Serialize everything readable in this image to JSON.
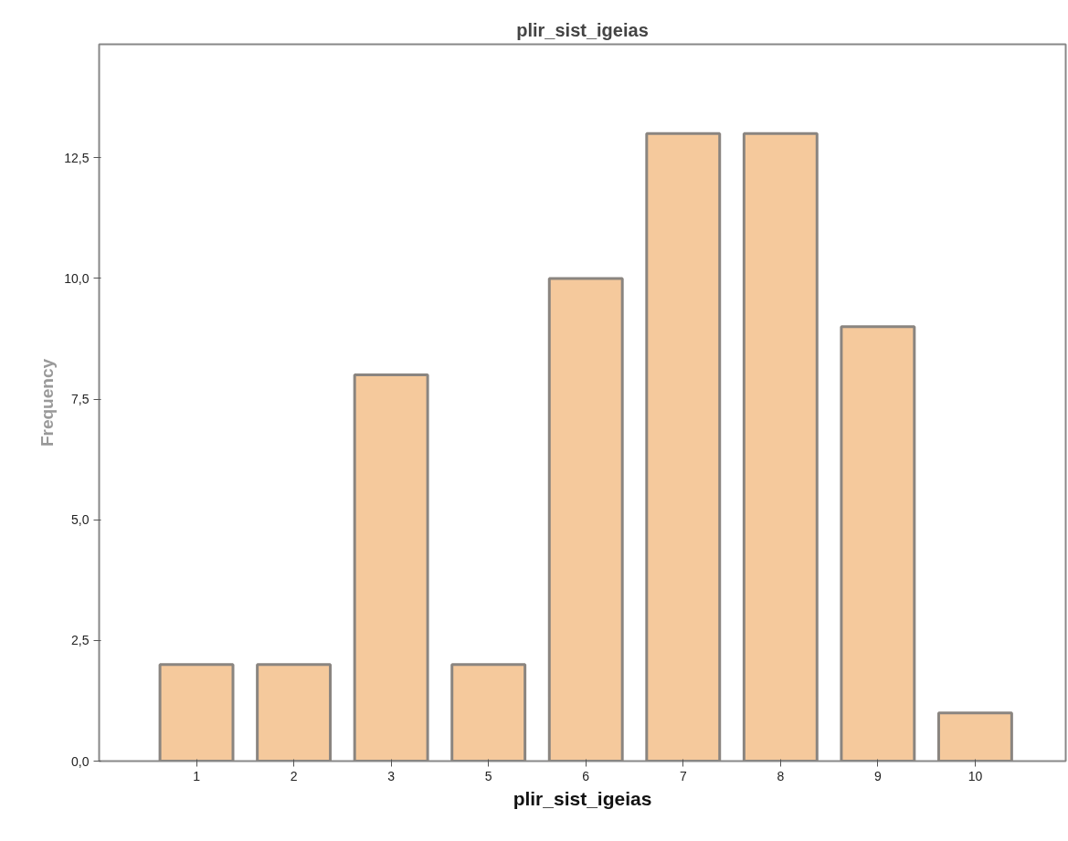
{
  "chart_data": {
    "type": "bar",
    "title": "plir_sist_igeias",
    "xlabel": "plir_sist_igeias",
    "ylabel": "Frequency",
    "categories": [
      "1",
      "2",
      "3",
      "5",
      "6",
      "7",
      "8",
      "9",
      "10"
    ],
    "values": [
      2,
      2,
      8,
      2,
      10,
      13,
      13,
      9,
      1
    ],
    "color": "#f5c99c",
    "ylim": [
      0,
      14.85
    ],
    "yticks": [
      {
        "value": 0,
        "label": "0,0"
      },
      {
        "value": 2.5,
        "label": "2,5"
      },
      {
        "value": 5,
        "label": "5,0"
      },
      {
        "value": 7.5,
        "label": "7,5"
      },
      {
        "value": 10,
        "label": "10,0"
      },
      {
        "value": 12.5,
        "label": "12,5"
      }
    ],
    "grid": false
  }
}
